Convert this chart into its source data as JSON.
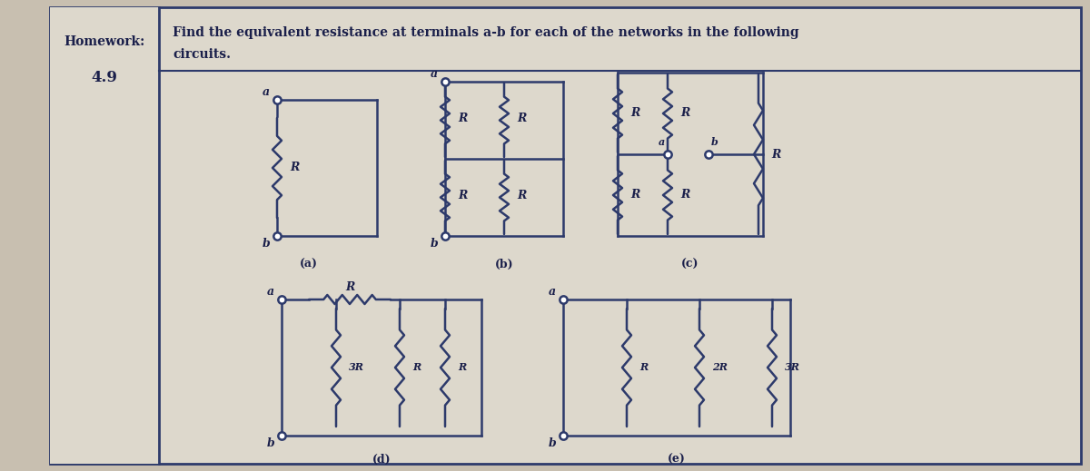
{
  "title_line1": "Find the equivalent resistance at terminals a-b for each of the networks in the following",
  "title_line2": "circuits.",
  "homework_label": "Homework:",
  "homework_num": "4.9",
  "outer_bg": "#c8bfb0",
  "panel_bg": "#ddd8cc",
  "sidebar_bg": "#ddd8cc",
  "line_color": "#2d3a6b",
  "text_color": "#1a1f4a",
  "circuit_labels": [
    "(a)",
    "(b)",
    "(c)",
    "(d)",
    "(e)"
  ]
}
